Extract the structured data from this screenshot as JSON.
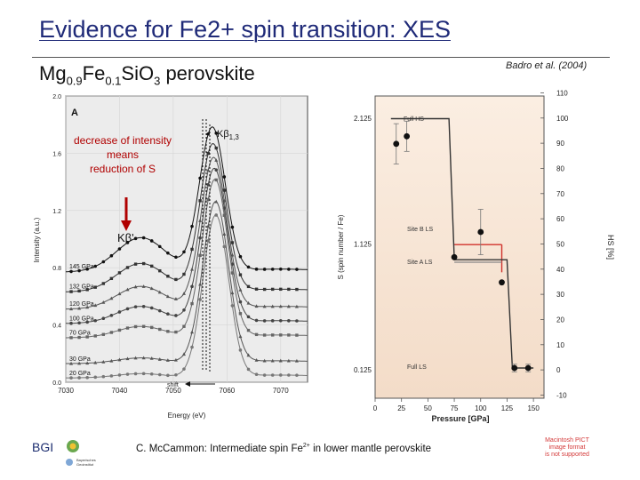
{
  "slide": {
    "title": "Evidence for Fe2+ spin transition: XES",
    "subtitle_parts": {
      "mg": "Mg",
      "mg_sub": "0.9",
      "fe": "Fe",
      "fe_sub": "0.1",
      "si": "SiO",
      "o_sub": "3",
      "rest": " perovskite"
    },
    "citation": "Badro et al. (2004)",
    "footer": {
      "pre": "C. McCammon: Intermediate spin Fe",
      "sup": "2+",
      "post": " in lower mantle perovskite"
    }
  },
  "figure_a": {
    "panel_label": "A",
    "xlabel": "Energy (eV)",
    "ylabel": "Intensity (a.u.)",
    "x_ticks": [
      "7030",
      "7040",
      "7050",
      "7060",
      "7070"
    ],
    "y_ticks": [
      "0.0",
      "0.4",
      "0.8",
      "1.2",
      "1.6",
      "2.0"
    ],
    "peak_main": "Kβ",
    "peak_main_sub": "1,3",
    "peak_sat": "Kβ'",
    "annotation_lines": [
      "decrease of intensity",
      "means",
      "reduction of S"
    ],
    "shift_label": "shift",
    "pressures": [
      "145 GPa",
      "132 GPa",
      "120 GPa",
      "100 GPa",
      "70 GPa",
      "30 GPa",
      "20 GPa"
    ]
  },
  "figure_b": {
    "xlabel": "Pressure [GPa]",
    "ylabel_left": "S (spin number / Fe)",
    "ylabel_right": "HS [%]",
    "x_ticks": [
      "0",
      "25",
      "50",
      "75",
      "100",
      "125",
      "150"
    ],
    "y_left_ticks": [
      "2.125",
      "1.125",
      "0.125"
    ],
    "y_right_ticks": [
      "110",
      "100",
      "90",
      "80",
      "70",
      "60",
      "50",
      "40",
      "30",
      "20",
      "10",
      "0",
      "-10"
    ],
    "labels": {
      "full_hs": "Full HS",
      "site_b": "Site B LS",
      "site_a": "Site A LS",
      "full_ls": "Full LS"
    }
  },
  "logos": {
    "bgi": "BGI",
    "partner_lines": [
      "Bayerisches",
      "Geoinstitut"
    ]
  },
  "stamp_lines": [
    "Macintosh PICT",
    "image format",
    "is not supported"
  ],
  "chart_data": [
    {
      "type": "line",
      "title": "A",
      "xlabel": "Energy (eV)",
      "ylabel": "Intensity (a.u.)",
      "xlim": [
        7030,
        7075
      ],
      "ylim": [
        0,
        2.0
      ],
      "peak_energy": 7058,
      "series": [
        {
          "name": "20 GPa",
          "offset": 0.0,
          "sat": 0.03
        },
        {
          "name": "30 GPa",
          "offset": 0.1,
          "sat": 0.04
        },
        {
          "name": "70 GPa",
          "offset": 0.28,
          "sat": 0.08
        },
        {
          "name": "100 GPa",
          "offset": 0.38,
          "sat": 0.12
        },
        {
          "name": "120 GPa",
          "offset": 0.48,
          "sat": 0.16
        },
        {
          "name": "132 GPa",
          "offset": 0.6,
          "sat": 0.2
        },
        {
          "name": "145 GPa",
          "offset": 0.74,
          "sat": 0.24
        }
      ]
    },
    {
      "type": "scatter",
      "xlabel": "Pressure [GPa]",
      "ylabel": "S (spin number / Fe)",
      "xlim": [
        0,
        160
      ],
      "ylim": [
        -0.1,
        2.3
      ],
      "points": [
        {
          "x": 20,
          "y": 1.92,
          "err": 0.16
        },
        {
          "x": 30,
          "y": 1.98,
          "err": 0.12
        },
        {
          "x": 75,
          "y": 1.02,
          "err": 0.0
        },
        {
          "x": 100,
          "y": 1.22,
          "err": 0.18
        },
        {
          "x": 120,
          "y": 0.82,
          "err": 0.0
        },
        {
          "x": 132,
          "y": 0.14,
          "err": 0.03
        },
        {
          "x": 145,
          "y": 0.14,
          "err": 0.03
        }
      ],
      "model_line": [
        [
          15,
          2.12
        ],
        [
          70,
          2.12
        ],
        [
          75,
          1.0
        ],
        [
          125,
          1.0
        ],
        [
          130,
          0.14
        ],
        [
          150,
          0.14
        ]
      ],
      "site_b_line": [
        [
          75,
          1.12
        ],
        [
          120,
          1.12
        ]
      ],
      "site_a_line": [
        [
          75,
          0.98
        ],
        [
          120,
          0.98
        ]
      ]
    }
  ]
}
